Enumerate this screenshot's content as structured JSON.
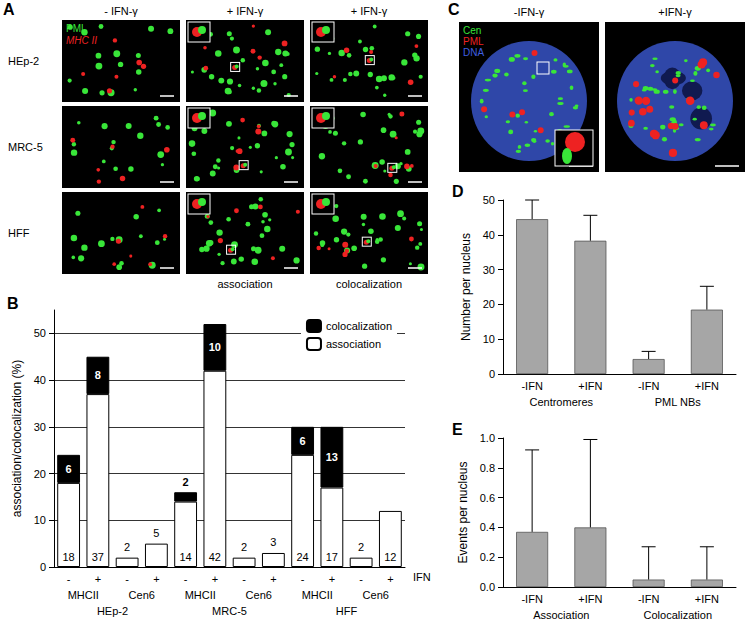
{
  "images": [
    {
      "title": "A",
      "column_titles": [
        "- IFN-γ",
        "+ IFN-γ",
        "+ IFN-γ"
      ],
      "row_labels": [
        "HEp-2",
        "MRC-5",
        "HFF"
      ],
      "column_captions": [
        "association",
        "colocalization"
      ],
      "legend": [
        {
          "text": "PML",
          "color": "#39e639"
        },
        {
          "text": "MHC II",
          "color": "#ee2222"
        }
      ]
    },
    {
      "title": "C",
      "column_titles": [
        "-IFN-γ",
        "+IFN-γ"
      ],
      "legend": [
        {
          "text": "Cen",
          "color": "#39e639"
        },
        {
          "text": "PML",
          "color": "#ee2222"
        },
        {
          "text": "DNA",
          "color": "#3f5fe0"
        }
      ]
    }
  ],
  "chart_data": [
    {
      "type": "bar",
      "title": "B",
      "stacked": true,
      "categories": [
        "-",
        "+",
        "-",
        "+",
        "-",
        "+",
        "-",
        "+",
        "-",
        "+",
        "-",
        "+"
      ],
      "category_groups": [
        "MHCII",
        "Cen6",
        "MHCII",
        "Cen6",
        "MHCII",
        "Cen6"
      ],
      "cell_lines": [
        "HEp-2",
        "MRC-5",
        "HFF"
      ],
      "xlabel": "IFN",
      "ylabel": "association/colocalization (%)",
      "ylim": [
        0,
        55
      ],
      "yticks": [
        0,
        10,
        20,
        30,
        40,
        50
      ],
      "grid": true,
      "legend": "upper right",
      "data_labels": true,
      "series": [
        {
          "name": "association",
          "color": "#ffffff",
          "values": [
            18,
            37,
            2,
            5,
            14,
            42,
            2,
            3,
            24,
            17,
            2,
            12
          ]
        },
        {
          "name": "colocalization",
          "color": "#000000",
          "values": [
            6,
            8,
            null,
            null,
            2,
            10,
            null,
            null,
            6,
            13,
            null,
            null
          ]
        }
      ]
    },
    {
      "type": "bar",
      "title": "D",
      "categories": [
        "-IFN",
        "+IFN",
        "-IFN",
        "+IFN"
      ],
      "category_groups": [
        "Centromeres",
        "PML NBs"
      ],
      "ylabel": "Number per nucleus",
      "ylim": [
        0,
        50
      ],
      "yticks": [
        0,
        10,
        20,
        30,
        40,
        50
      ],
      "color": "#a6a6a6",
      "values": [
        44.5,
        38.3,
        4.3,
        18.5
      ],
      "errors": [
        5.5,
        7.3,
        2.2,
        6.7
      ]
    },
    {
      "type": "bar",
      "title": "E",
      "categories": [
        "-IFN",
        "+IFN",
        "-IFN",
        "+IFN"
      ],
      "category_groups": [
        "Association",
        "Colocalization"
      ],
      "ylabel": "Events per nucleus",
      "ylim": [
        0,
        1
      ],
      "yticks": [
        {
          "value": 0,
          "label": "0.0"
        },
        0.2,
        0.4,
        0.6,
        0.8,
        {
          "value": 1,
          "label": "1.0"
        }
      ],
      "color": "#a6a6a6",
      "values": [
        0.37,
        0.4,
        0.05,
        0.05
      ],
      "errors": [
        0.55,
        0.59,
        0.22,
        0.22
      ]
    }
  ]
}
